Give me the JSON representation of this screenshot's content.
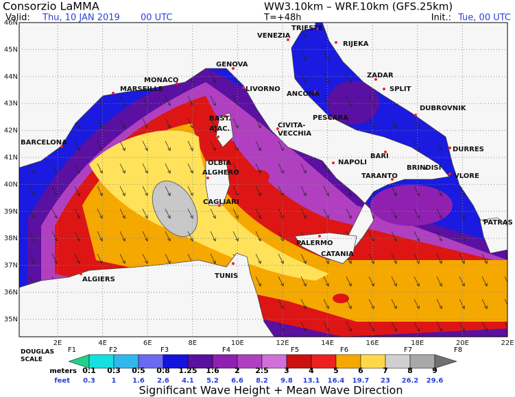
{
  "header": {
    "org": "Consorzio LaMMA",
    "valid_label": "Valid:",
    "valid_date": "Thu, 10 JAN 2019",
    "valid_time": "00 UTC",
    "models": "WW3.10km – WRF.10km (GFS.25km)",
    "lead": "T=+48h",
    "init_label": "Init.:",
    "init_time": "Tue, 00 UTC"
  },
  "map": {
    "lat_labels": [
      "46N",
      "45N",
      "44N",
      "43N",
      "42N",
      "41N",
      "40N",
      "39N",
      "38N",
      "37N",
      "36N",
      "35N"
    ],
    "lon_labels": [
      "2E",
      "4E",
      "6E",
      "8E",
      "10E",
      "12E",
      "14E",
      "16E",
      "18E",
      "20E",
      "22E"
    ],
    "cities": [
      {
        "label": "TRIESTE"
      },
      {
        "label": "VENEZIA"
      },
      {
        "label": "RIJEKA"
      },
      {
        "label": "MONACO"
      },
      {
        "label": "MARSEILLE"
      },
      {
        "label": "GENOVA"
      },
      {
        "label": "LIVORNO"
      },
      {
        "label": "ANCONA"
      },
      {
        "label": "ZADAR"
      },
      {
        "label": "SPLIT"
      },
      {
        "label": "DUBROVNIK"
      },
      {
        "label": "BAST."
      },
      {
        "label": "AJAC."
      },
      {
        "label": "CIVITA-"
      },
      {
        "label": "VECCHIA"
      },
      {
        "label": "PESCARA"
      },
      {
        "label": "BARCELONA"
      },
      {
        "label": "OLBIA"
      },
      {
        "label": "ALGHERO"
      },
      {
        "label": "NAPOLI"
      },
      {
        "label": "BARI"
      },
      {
        "label": "BRINDISI"
      },
      {
        "label": "TARANTO"
      },
      {
        "label": "DURRES"
      },
      {
        "label": "VLORE"
      },
      {
        "label": "CAGLIARI"
      },
      {
        "label": "PATRAS"
      },
      {
        "label": "PALERMO"
      },
      {
        "label": "CATANIA"
      },
      {
        "label": "ALGIERS"
      },
      {
        "label": "TUNIS"
      }
    ]
  },
  "legend": {
    "scale_label": [
      "DOUGLAS",
      "SCALE"
    ],
    "douglas": [
      "F1",
      "F2",
      "F3",
      "F4",
      "F5",
      "F6",
      "F7",
      "F8"
    ],
    "meters_label": "meters",
    "feet_label": "feet",
    "meters": [
      "0.1",
      "0.3",
      "0.5",
      "0.8",
      "1.25",
      "1.6",
      "2",
      "2.5",
      "3",
      "4",
      "5",
      "6",
      "7",
      "8",
      "9"
    ],
    "feet": [
      "0.3",
      "1",
      "1.6",
      "2.6",
      "4.1",
      "5.2",
      "6.6",
      "8.2",
      "9.8",
      "13.1",
      "16.4",
      "19.7",
      "23",
      "26.2",
      "29.6"
    ],
    "colors": [
      "#22d08a",
      "#14e0e0",
      "#30b8ec",
      "#6a6af2",
      "#1414e0",
      "#5a10a0",
      "#9020b0",
      "#b040c0",
      "#d070d8",
      "#cc1010",
      "#ee2020",
      "#f5a800",
      "#ffd84a",
      "#d0d0d0",
      "#a8a8a8",
      "#707070"
    ],
    "title": "Significant Wave Height + Mean Wave Direction"
  }
}
